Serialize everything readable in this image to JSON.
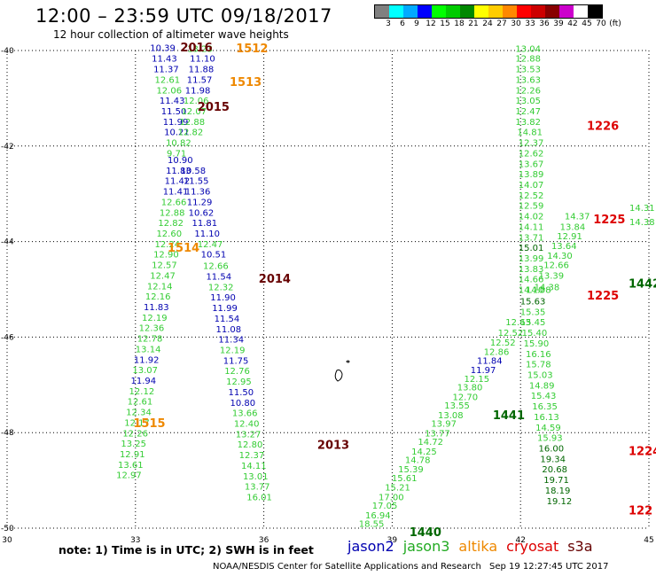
{
  "header": {
    "title": "12:00 – 23:59 UTC 09/18/2017",
    "subtitle": "12 hour collection of altimeter wave heights"
  },
  "colorbar": {
    "colors": [
      "#808080",
      "#00ffff",
      "#00aaff",
      "#0000ff",
      "#00ff00",
      "#00cc00",
      "#008800",
      "#ffff00",
      "#ffcc00",
      "#ff8800",
      "#ff0000",
      "#cc0000",
      "#880000",
      "#cc00cc",
      "#ffffff",
      "#000000"
    ],
    "labels": [
      "3",
      "6",
      "9",
      "12",
      "15",
      "18",
      "21",
      "24",
      "27",
      "30",
      "33",
      "36",
      "39",
      "42",
      "45",
      "70",
      "(ft)"
    ]
  },
  "axes": {
    "x_ticks": [
      "30",
      "33",
      "36",
      "39",
      "42",
      "45"
    ],
    "y_ticks": [
      "-40",
      "-42",
      "-44",
      "-46",
      "-48",
      "-50"
    ]
  },
  "colors": {
    "jason2": "#0000b0",
    "jason3": "#33cc33",
    "jason3_dark": "#006600",
    "altika": "#ee8800",
    "cryosat": "#dd0000",
    "s3a": "#660000"
  },
  "footer": {
    "note": "note:  1) Time is in UTC;  2) SWH is in feet",
    "satellites": [
      {
        "name": "jason2",
        "color": "#0000b0"
      },
      {
        "name": "jason3",
        "color": "#22aa22"
      },
      {
        "name": "altika",
        "color": "#ee8800"
      },
      {
        "name": "cryosat",
        "color": "#dd0000"
      },
      {
        "name": "s3a",
        "color": "#660000"
      }
    ],
    "credit": "NOAA/NESDIS Center for Satellite Applications and Research",
    "timestamp": "Sep 19 12:27:45 UTC 2017"
  },
  "map_labels": [
    {
      "t": "10.39",
      "lon": 33.34,
      "lat": -39.95,
      "c": "jason2"
    },
    {
      "t": "11.43",
      "lon": 33.38,
      "lat": -40.18,
      "c": "jason2"
    },
    {
      "t": "11.37",
      "lon": 33.42,
      "lat": -40.4,
      "c": "jason2"
    },
    {
      "t": "12.61",
      "lon": 33.45,
      "lat": -40.62,
      "c": "jason3"
    },
    {
      "t": "12.06",
      "lon": 33.49,
      "lat": -40.84,
      "c": "jason3"
    },
    {
      "t": "11.43",
      "lon": 33.56,
      "lat": -41.06,
      "c": "jason2"
    },
    {
      "t": "11.50",
      "lon": 33.6,
      "lat": -41.28,
      "c": "jason2"
    },
    {
      "t": "11.99",
      "lon": 33.64,
      "lat": -41.5,
      "c": "jason2"
    },
    {
      "t": "10.21",
      "lon": 33.67,
      "lat": -41.72,
      "c": "jason2"
    },
    {
      "t": "10.82",
      "lon": 33.71,
      "lat": -41.94,
      "c": "jason3"
    },
    {
      "t": "9.71",
      "lon": 33.73,
      "lat": -42.16,
      "c": "jason3"
    },
    {
      "t": "10.90",
      "lon": 33.75,
      "lat": -42.3,
      "c": "jason2"
    },
    {
      "t": "11.83",
      "lon": 33.71,
      "lat": -42.52,
      "c": "jason2"
    },
    {
      "t": "11.42",
      "lon": 33.68,
      "lat": -42.74,
      "c": "jason2"
    },
    {
      "t": "11.41",
      "lon": 33.64,
      "lat": -42.96,
      "c": "jason2"
    },
    {
      "t": "12.66",
      "lon": 33.6,
      "lat": -43.18,
      "c": "jason3"
    },
    {
      "t": "12.88",
      "lon": 33.56,
      "lat": -43.4,
      "c": "jason3"
    },
    {
      "t": "12.82",
      "lon": 33.53,
      "lat": -43.62,
      "c": "jason3"
    },
    {
      "t": "12.60",
      "lon": 33.49,
      "lat": -43.84,
      "c": "jason3"
    },
    {
      "t": "12.24",
      "lon": 33.45,
      "lat": -44.06,
      "c": "jason3"
    },
    {
      "t": "12.90",
      "lon": 33.42,
      "lat": -44.28,
      "c": "jason3"
    },
    {
      "t": "12.57",
      "lon": 33.38,
      "lat": -44.5,
      "c": "jason3"
    },
    {
      "t": "12.47",
      "lon": 33.34,
      "lat": -44.72,
      "c": "jason3"
    },
    {
      "t": "12.14",
      "lon": 33.27,
      "lat": -44.94,
      "c": "jason3"
    },
    {
      "t": "12.16",
      "lon": 33.23,
      "lat": -45.16,
      "c": "jason3"
    },
    {
      "t": "11.83",
      "lon": 33.19,
      "lat": -45.38,
      "c": "jason2"
    },
    {
      "t": "12.19",
      "lon": 33.15,
      "lat": -45.6,
      "c": "jason3"
    },
    {
      "t": "12.36",
      "lon": 33.08,
      "lat": -45.82,
      "c": "jason3"
    },
    {
      "t": "12.78",
      "lon": 33.04,
      "lat": -46.04,
      "c": "jason3"
    },
    {
      "t": "13.14",
      "lon": 33.0,
      "lat": -46.26,
      "c": "jason3"
    },
    {
      "t": "11.92",
      "lon": 32.96,
      "lat": -46.48,
      "c": "jason2"
    },
    {
      "t": "13.07",
      "lon": 32.93,
      "lat": -46.7,
      "c": "jason3"
    },
    {
      "t": "11.94",
      "lon": 32.89,
      "lat": -46.92,
      "c": "jason2"
    },
    {
      "t": "12.12",
      "lon": 32.85,
      "lat": -47.14,
      "c": "jason3"
    },
    {
      "t": "12.61",
      "lon": 32.81,
      "lat": -47.36,
      "c": "jason3"
    },
    {
      "t": "12.34",
      "lon": 32.78,
      "lat": -47.58,
      "c": "jason3"
    },
    {
      "t": "12.17",
      "lon": 32.74,
      "lat": -47.8,
      "c": "jason3"
    },
    {
      "t": "12.26",
      "lon": 32.7,
      "lat": -48.02,
      "c": "jason3"
    },
    {
      "t": "13.25",
      "lon": 32.66,
      "lat": -48.24,
      "c": "jason3"
    },
    {
      "t": "12.91",
      "lon": 32.63,
      "lat": -48.46,
      "c": "jason3"
    },
    {
      "t": "13.61",
      "lon": 32.59,
      "lat": -48.68,
      "c": "jason3"
    },
    {
      "t": "12.97",
      "lon": 32.55,
      "lat": -48.9,
      "c": "jason3"
    },
    {
      "t": "13.23",
      "lon": 34.21,
      "lat": -39.97,
      "c": "jason3"
    },
    {
      "t": "11.10",
      "lon": 34.27,
      "lat": -40.18,
      "c": "jason2"
    },
    {
      "t": "11.88",
      "lon": 34.24,
      "lat": -40.4,
      "c": "jason2"
    },
    {
      "t": "11.57",
      "lon": 34.2,
      "lat": -40.62,
      "c": "jason2"
    },
    {
      "t": "11.98",
      "lon": 34.16,
      "lat": -40.84,
      "c": "jason2"
    },
    {
      "t": "12.06",
      "lon": 34.12,
      "lat": -41.06,
      "c": "jason3"
    },
    {
      "t": "12.07",
      "lon": 34.07,
      "lat": -41.28,
      "c": "jason3"
    },
    {
      "t": "12.88",
      "lon": 34.03,
      "lat": -41.5,
      "c": "jason3"
    },
    {
      "t": "12.82",
      "lon": 33.99,
      "lat": -41.72,
      "c": "jason3"
    },
    {
      "t": "10.58",
      "lon": 34.05,
      "lat": -42.52,
      "c": "jason2"
    },
    {
      "t": "11.55",
      "lon": 34.12,
      "lat": -42.74,
      "c": "jason2"
    },
    {
      "t": "11.36",
      "lon": 34.16,
      "lat": -42.96,
      "c": "jason2"
    },
    {
      "t": "11.29",
      "lon": 34.2,
      "lat": -43.18,
      "c": "jason2"
    },
    {
      "t": "10.62",
      "lon": 34.24,
      "lat": -43.4,
      "c": "jason2"
    },
    {
      "t": "11.81",
      "lon": 34.32,
      "lat": -43.62,
      "c": "jason2"
    },
    {
      "t": "11.10",
      "lon": 34.38,
      "lat": -43.84,
      "c": "jason2"
    },
    {
      "t": "12.47",
      "lon": 34.45,
      "lat": -44.06,
      "c": "jason3"
    },
    {
      "t": "10.51",
      "lon": 34.53,
      "lat": -44.28,
      "c": "jason2"
    },
    {
      "t": "12.66",
      "lon": 34.58,
      "lat": -44.52,
      "c": "jason3"
    },
    {
      "t": "11.54",
      "lon": 34.65,
      "lat": -44.74,
      "c": "jason2"
    },
    {
      "t": "12.32",
      "lon": 34.7,
      "lat": -44.96,
      "c": "jason3"
    },
    {
      "t": "11.90",
      "lon": 34.75,
      "lat": -45.18,
      "c": "jason2"
    },
    {
      "t": "11.99",
      "lon": 34.79,
      "lat": -45.4,
      "c": "jason2"
    },
    {
      "t": "11.54",
      "lon": 34.84,
      "lat": -45.62,
      "c": "jason2"
    },
    {
      "t": "11.08",
      "lon": 34.88,
      "lat": -45.84,
      "c": "jason2"
    },
    {
      "t": "11.34",
      "lon": 34.94,
      "lat": -46.06,
      "c": "jason2"
    },
    {
      "t": "12.19",
      "lon": 34.97,
      "lat": -46.28,
      "c": "jason3"
    },
    {
      "t": "11.75",
      "lon": 35.05,
      "lat": -46.5,
      "c": "jason2"
    },
    {
      "t": "12.76",
      "lon": 35.08,
      "lat": -46.72,
      "c": "jason3"
    },
    {
      "t": "12.95",
      "lon": 35.12,
      "lat": -46.94,
      "c": "jason3"
    },
    {
      "t": "11.50",
      "lon": 35.17,
      "lat": -47.16,
      "c": "jason2"
    },
    {
      "t": "10.80",
      "lon": 35.21,
      "lat": -47.38,
      "c": "jason2"
    },
    {
      "t": "13.66",
      "lon": 35.26,
      "lat": -47.6,
      "c": "jason3"
    },
    {
      "t": "12.40",
      "lon": 35.3,
      "lat": -47.82,
      "c": "jason3"
    },
    {
      "t": "13.27",
      "lon": 35.34,
      "lat": -48.04,
      "c": "jason3"
    },
    {
      "t": "12.80",
      "lon": 35.38,
      "lat": -48.26,
      "c": "jason3"
    },
    {
      "t": "12.37",
      "lon": 35.42,
      "lat": -48.48,
      "c": "jason3"
    },
    {
      "t": "14.11",
      "lon": 35.47,
      "lat": -48.7,
      "c": "jason3"
    },
    {
      "t": "13.01",
      "lon": 35.51,
      "lat": -48.92,
      "c": "jason3"
    },
    {
      "t": "13.77",
      "lon": 35.55,
      "lat": -49.14,
      "c": "jason3"
    },
    {
      "t": "16.01",
      "lon": 35.6,
      "lat": -49.36,
      "c": "jason3"
    },
    {
      "t": "13.04",
      "lon": 41.88,
      "lat": -39.97,
      "c": "jason3"
    },
    {
      "t": "12.88",
      "lon": 41.88,
      "lat": -40.18,
      "c": "jason3"
    },
    {
      "t": "13.53",
      "lon": 41.88,
      "lat": -40.4,
      "c": "jason3"
    },
    {
      "t": "13.63",
      "lon": 41.88,
      "lat": -40.62,
      "c": "jason3"
    },
    {
      "t": "12.26",
      "lon": 41.88,
      "lat": -40.84,
      "c": "jason3"
    },
    {
      "t": "13.05",
      "lon": 41.88,
      "lat": -41.06,
      "c": "jason3"
    },
    {
      "t": "12.47",
      "lon": 41.88,
      "lat": -41.28,
      "c": "jason3"
    },
    {
      "t": "13.82",
      "lon": 41.88,
      "lat": -41.5,
      "c": "jason3"
    },
    {
      "t": "14.81",
      "lon": 41.92,
      "lat": -41.72,
      "c": "jason3"
    },
    {
      "t": "12.37",
      "lon": 41.95,
      "lat": -41.94,
      "c": "jason3"
    },
    {
      "t": "12.62",
      "lon": 41.95,
      "lat": -42.16,
      "c": "jason3"
    },
    {
      "t": "13.67",
      "lon": 41.95,
      "lat": -42.38,
      "c": "jason3"
    },
    {
      "t": "13.89",
      "lon": 41.95,
      "lat": -42.6,
      "c": "jason3"
    },
    {
      "t": "14.07",
      "lon": 41.95,
      "lat": -42.82,
      "c": "jason3"
    },
    {
      "t": "12.52",
      "lon": 41.95,
      "lat": -43.04,
      "c": "jason3"
    },
    {
      "t": "12.59",
      "lon": 41.95,
      "lat": -43.26,
      "c": "jason3"
    },
    {
      "t": "14.02",
      "lon": 41.95,
      "lat": -43.48,
      "c": "jason3"
    },
    {
      "t": "14.11",
      "lon": 41.95,
      "lat": -43.7,
      "c": "jason3"
    },
    {
      "t": "13.71",
      "lon": 41.95,
      "lat": -43.92,
      "c": "jason3"
    },
    {
      "t": "15.01",
      "lon": 41.95,
      "lat": -44.14,
      "c": "jason3_dark"
    },
    {
      "t": "13.99",
      "lon": 41.95,
      "lat": -44.36,
      "c": "jason3"
    },
    {
      "t": "13.83",
      "lon": 41.95,
      "lat": -44.58,
      "c": "jason3"
    },
    {
      "t": "14.66",
      "lon": 41.95,
      "lat": -44.8,
      "c": "jason3"
    },
    {
      "t": "14.10",
      "lon": 41.95,
      "lat": -45.02,
      "c": "jason3"
    },
    {
      "t": "15.63",
      "lon": 41.99,
      "lat": -45.26,
      "c": "jason3_dark"
    },
    {
      "t": "15.35",
      "lon": 41.99,
      "lat": -45.48,
      "c": "jason3"
    },
    {
      "t": "15.45",
      "lon": 41.99,
      "lat": -45.7,
      "c": "jason3"
    },
    {
      "t": "15.40",
      "lon": 42.03,
      "lat": -45.92,
      "c": "jason3"
    },
    {
      "t": "15.90",
      "lon": 42.07,
      "lat": -46.14,
      "c": "jason3"
    },
    {
      "t": "16.16",
      "lon": 42.12,
      "lat": -46.36,
      "c": "jason3"
    },
    {
      "t": "15.78",
      "lon": 42.12,
      "lat": -46.58,
      "c": "jason3"
    },
    {
      "t": "15.03",
      "lon": 42.16,
      "lat": -46.8,
      "c": "jason3"
    },
    {
      "t": "14.89",
      "lon": 42.2,
      "lat": -47.02,
      "c": "jason3"
    },
    {
      "t": "15.43",
      "lon": 42.24,
      "lat": -47.24,
      "c": "jason3"
    },
    {
      "t": "16.35",
      "lon": 42.27,
      "lat": -47.46,
      "c": "jason3"
    },
    {
      "t": "16.13",
      "lon": 42.31,
      "lat": -47.68,
      "c": "jason3"
    },
    {
      "t": "14.59",
      "lon": 42.35,
      "lat": -47.9,
      "c": "jason3"
    },
    {
      "t": "15.93",
      "lon": 42.39,
      "lat": -48.12,
      "c": "jason3"
    },
    {
      "t": "16.00",
      "lon": 42.42,
      "lat": -48.34,
      "c": "jason3_dark"
    },
    {
      "t": "19.34",
      "lon": 42.46,
      "lat": -48.56,
      "c": "jason3_dark"
    },
    {
      "t": "20.68",
      "lon": 42.5,
      "lat": -48.78,
      "c": "jason3_dark"
    },
    {
      "t": "19.71",
      "lon": 42.54,
      "lat": -49.0,
      "c": "jason3_dark"
    },
    {
      "t": "18.19",
      "lon": 42.57,
      "lat": -49.22,
      "c": "jason3_dark"
    },
    {
      "t": "19.12",
      "lon": 42.61,
      "lat": -49.44,
      "c": "jason3_dark"
    },
    {
      "t": "14.38",
      "lon": 42.32,
      "lat": -44.96,
      "c": "jason3"
    },
    {
      "t": "13.39",
      "lon": 42.42,
      "lat": -44.72,
      "c": "jason3"
    },
    {
      "t": "12.66",
      "lon": 42.54,
      "lat": -44.5,
      "c": "jason3"
    },
    {
      "t": "14.30",
      "lon": 42.62,
      "lat": -44.3,
      "c": "jason3"
    },
    {
      "t": "13.64",
      "lon": 42.72,
      "lat": -44.1,
      "c": "jason3"
    },
    {
      "t": "12.91",
      "lon": 42.85,
      "lat": -43.9,
      "c": "jason3"
    },
    {
      "t": "13.84",
      "lon": 42.92,
      "lat": -43.7,
      "c": "jason3"
    },
    {
      "t": "14.37",
      "lon": 43.03,
      "lat": -43.48,
      "c": "jason3"
    },
    {
      "t": "14.08",
      "lon": 42.12,
      "lat": -45.02,
      "c": "jason3"
    },
    {
      "t": "14.31",
      "lon": 44.9,
      "lat": -43.3,
      "c": "jason3"
    },
    {
      "t": "14.38",
      "lon": 44.9,
      "lat": -43.6,
      "c": "jason3"
    },
    {
      "t": "12.63",
      "lon": 41.65,
      "lat": -45.7,
      "c": "jason3"
    },
    {
      "t": "12.52",
      "lon": 41.47,
      "lat": -45.92,
      "c": "jason3"
    },
    {
      "t": "12.52",
      "lon": 41.29,
      "lat": -46.12,
      "c": "jason3"
    },
    {
      "t": "12.86",
      "lon": 41.14,
      "lat": -46.32,
      "c": "jason3"
    },
    {
      "t": "11.84",
      "lon": 40.98,
      "lat": -46.5,
      "c": "jason2"
    },
    {
      "t": "11.97",
      "lon": 40.83,
      "lat": -46.7,
      "c": "jason2"
    },
    {
      "t": "12.15",
      "lon": 40.68,
      "lat": -46.88,
      "c": "jason3"
    },
    {
      "t": "13.80",
      "lon": 40.52,
      "lat": -47.06,
      "c": "jason3"
    },
    {
      "t": "12.70",
      "lon": 40.41,
      "lat": -47.26,
      "c": "jason3"
    },
    {
      "t": "13.55",
      "lon": 40.22,
      "lat": -47.44,
      "c": "jason3"
    },
    {
      "t": "13.08",
      "lon": 40.07,
      "lat": -47.64,
      "c": "jason3"
    },
    {
      "t": "13.97",
      "lon": 39.91,
      "lat": -47.82,
      "c": "jason3"
    },
    {
      "t": "13.77",
      "lon": 39.76,
      "lat": -48.02,
      "c": "jason3"
    },
    {
      "t": "14.72",
      "lon": 39.6,
      "lat": -48.2,
      "c": "jason3"
    },
    {
      "t": "14.25",
      "lon": 39.45,
      "lat": -48.4,
      "c": "jason3"
    },
    {
      "t": "14.78",
      "lon": 39.3,
      "lat": -48.58,
      "c": "jason3"
    },
    {
      "t": "15.39",
      "lon": 39.14,
      "lat": -48.78,
      "c": "jason3"
    },
    {
      "t": "15.61",
      "lon": 38.99,
      "lat": -48.96,
      "c": "jason3"
    },
    {
      "t": "15.21",
      "lon": 38.83,
      "lat": -49.16,
      "c": "jason3"
    },
    {
      "t": "17.00",
      "lon": 38.68,
      "lat": -49.36,
      "c": "jason3"
    },
    {
      "t": "17.05",
      "lon": 38.53,
      "lat": -49.54,
      "c": "jason3"
    },
    {
      "t": "16.94",
      "lon": 38.37,
      "lat": -49.74,
      "c": "jason3"
    },
    {
      "t": "18.55",
      "lon": 38.22,
      "lat": -49.92,
      "c": "jason3"
    },
    {
      "t": "2016",
      "lon": 34.05,
      "lat": -39.95,
      "c": "s3a",
      "tag": true
    },
    {
      "t": "1512",
      "lon": 35.35,
      "lat": -39.97,
      "c": "altika",
      "tag": true
    },
    {
      "t": "1513",
      "lon": 35.2,
      "lat": -40.68,
      "c": "altika",
      "tag": true
    },
    {
      "t": "2015",
      "lon": 34.45,
      "lat": -41.2,
      "c": "s3a",
      "tag": true
    },
    {
      "t": "1514",
      "lon": 33.75,
      "lat": -44.15,
      "c": "altika",
      "tag": true
    },
    {
      "t": "2014",
      "lon": 35.88,
      "lat": -44.8,
      "c": "s3a",
      "tag": true
    },
    {
      "t": "2013",
      "lon": 37.25,
      "lat": -48.27,
      "c": "s3a",
      "tag": true
    },
    {
      "t": "1515",
      "lon": 32.95,
      "lat": -47.82,
      "c": "altika",
      "tag": true
    },
    {
      "t": "1226",
      "lon": 43.55,
      "lat": -41.6,
      "c": "cryosat",
      "tag": true
    },
    {
      "t": "1225",
      "lon": 43.7,
      "lat": -43.55,
      "c": "cryosat",
      "tag": true
    },
    {
      "t": "1225",
      "lon": 43.55,
      "lat": -45.15,
      "c": "cryosat",
      "tag": true
    },
    {
      "t": "1442",
      "lon": 44.85,
      "lat": -44.9,
      "c": "jason3_dark",
      "tag": true
    },
    {
      "t": "1441",
      "lon": 41.35,
      "lat": -47.65,
      "c": "jason3_dark",
      "tag": true
    },
    {
      "t": "1440",
      "lon": 39.4,
      "lat": -50.1,
      "c": "jason3_dark",
      "tag": true
    },
    {
      "t": "1224",
      "lon": 44.75,
      "lat": -48.4,
      "c": "cryosat",
      "tag": true
    },
    {
      "t": "122",
      "lon": 44.9,
      "lat": -49.65,
      "c": "cryosat",
      "tag": true
    }
  ]
}
